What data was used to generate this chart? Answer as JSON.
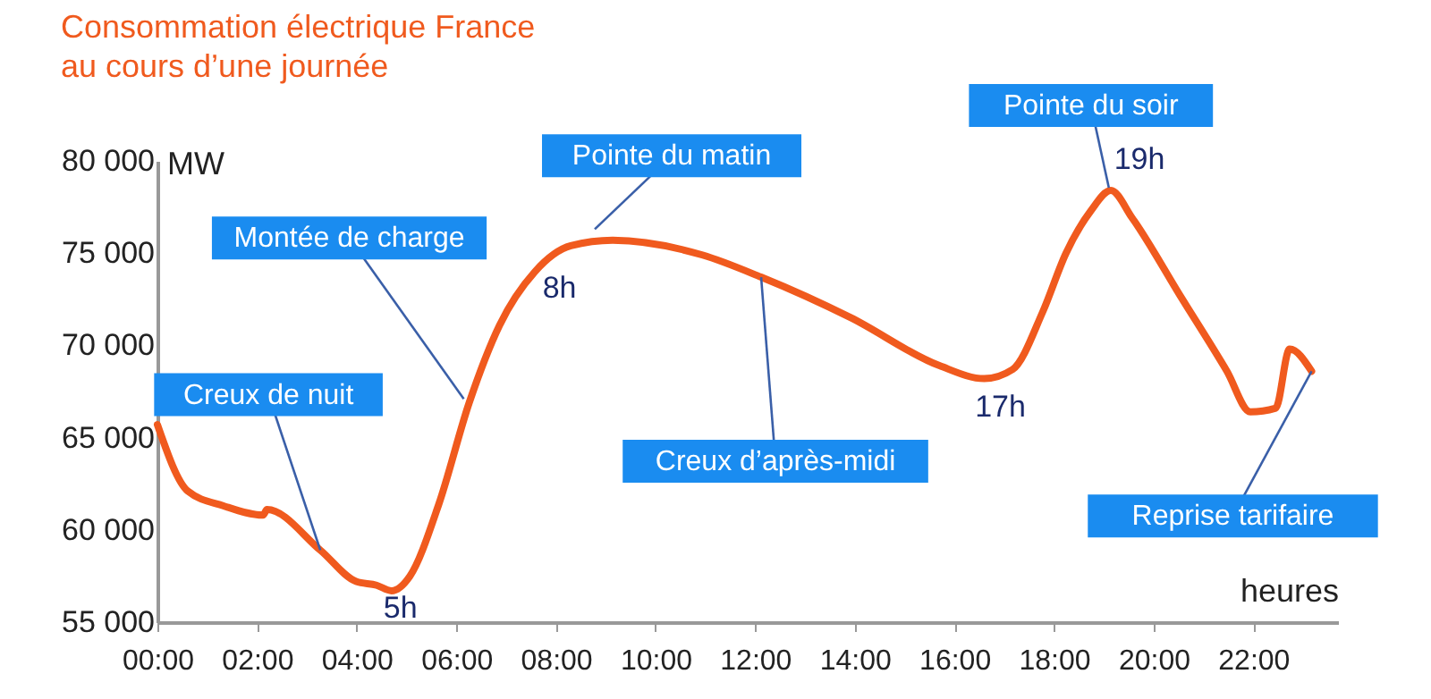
{
  "chart_data": {
    "type": "line",
    "title": "Consommation électrique France\nau cours d’une journée",
    "ylabel": "MW",
    "xlabel": "heures",
    "x": [
      0,
      0.61,
      1.33,
      2.12,
      2.2,
      3.27,
      3.99,
      4.4,
      4.7,
      5.07,
      5.65,
      6.26,
      6.87,
      7.58,
      8.3,
      9.14,
      10.94,
      12.12,
      13.92,
      15.7,
      16.6,
      17.17,
      17.77,
      18.24,
      18.74,
      19.14,
      19.57,
      20.53,
      21.47,
      21.94,
      22.45,
      22.73,
      23.17
    ],
    "series": [
      {
        "color": "#f05a1e",
        "values": [
          65700,
          62100,
          61300,
          60800,
          61100,
          58900,
          57200,
          57000,
          56700,
          57500,
          61400,
          66900,
          71100,
          74000,
          75400,
          75700,
          74900,
          73700,
          71500,
          68900,
          68200,
          68700,
          71800,
          75000,
          77300,
          78400,
          76900,
          72700,
          68600,
          66400,
          66600,
          69800,
          68600
        ]
      }
    ],
    "xlim": [
      0,
      23.7
    ],
    "ylim": [
      55000,
      80000
    ],
    "xticks": [
      {
        "value": 0,
        "label": "00:00"
      },
      {
        "value": 2,
        "label": "02:00"
      },
      {
        "value": 4,
        "label": "04:00"
      },
      {
        "value": 6,
        "label": "06:00"
      },
      {
        "value": 8,
        "label": "08:00"
      },
      {
        "value": 10,
        "label": "10:00"
      },
      {
        "value": 12,
        "label": "12:00"
      },
      {
        "value": 14,
        "label": "14:00"
      },
      {
        "value": 16,
        "label": "16:00"
      },
      {
        "value": 18,
        "label": "18:00"
      },
      {
        "value": 20,
        "label": "20:00"
      },
      {
        "value": 22,
        "label": "22:00"
      }
    ],
    "yticks": [
      {
        "value": 55000,
        "label": "55 000"
      },
      {
        "value": 60000,
        "label": "60 000"
      },
      {
        "value": 65000,
        "label": "65 000"
      },
      {
        "value": 70000,
        "label": "70 000"
      },
      {
        "value": 75000,
        "label": "75 000"
      },
      {
        "value": 80000,
        "label": "80 000"
      }
    ],
    "annotations": [
      {
        "text": "Creux de nuit",
        "x": 3.27,
        "y": 58900
      },
      {
        "text": "Montée de charge",
        "x": 6.15,
        "y": 67100
      },
      {
        "text": "Pointe du matin",
        "x": 8.78,
        "y": 76300
      },
      {
        "text": "Creux d’après-midi",
        "x": 12.12,
        "y": 73700
      },
      {
        "text": "Pointe du soir",
        "x": 19.1,
        "y": 78550
      },
      {
        "text": "Reprise tarifaire",
        "x": 23.17,
        "y": 68600
      },
      {
        "text": "5h",
        "x": 4.7,
        "y": 56700
      },
      {
        "text": "8h",
        "x": 8.0,
        "y": 74800
      },
      {
        "text": "17h",
        "x": 16.6,
        "y": 68200
      },
      {
        "text": "19h",
        "x": 19.14,
        "y": 78400
      }
    ],
    "grid": false,
    "marker": "none",
    "line_style": "solid"
  }
}
